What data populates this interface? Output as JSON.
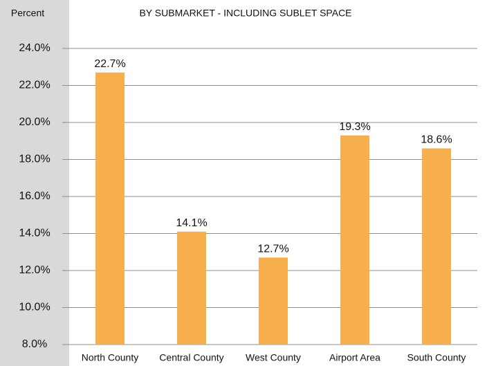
{
  "chart_data": {
    "type": "bar",
    "title": "BY SUBMARKET - INCLUDING SUBLET SPACE",
    "y_label": "Percent",
    "categories": [
      "North County",
      "Central County",
      "West County",
      "Airport Area",
      "South County"
    ],
    "values": [
      22.7,
      14.1,
      12.7,
      19.3,
      18.6
    ],
    "value_labels": [
      "22.7%",
      "14.1%",
      "12.7%",
      "19.3%",
      "18.6%"
    ],
    "color": "#f7ae4c",
    "ylim": [
      8,
      24
    ],
    "yticks": [
      {
        "value": 8,
        "label": "8.0%"
      },
      {
        "value": 10,
        "label": "10.0%"
      },
      {
        "value": 12,
        "label": "12.0%"
      },
      {
        "value": 14,
        "label": "14.0%"
      },
      {
        "value": 16,
        "label": "16.0%"
      },
      {
        "value": 18,
        "label": "18.0%"
      },
      {
        "value": 20,
        "label": "20.0%"
      },
      {
        "value": 22,
        "label": "22.0%"
      },
      {
        "value": 24,
        "label": "24.0%"
      }
    ],
    "grid": true
  }
}
